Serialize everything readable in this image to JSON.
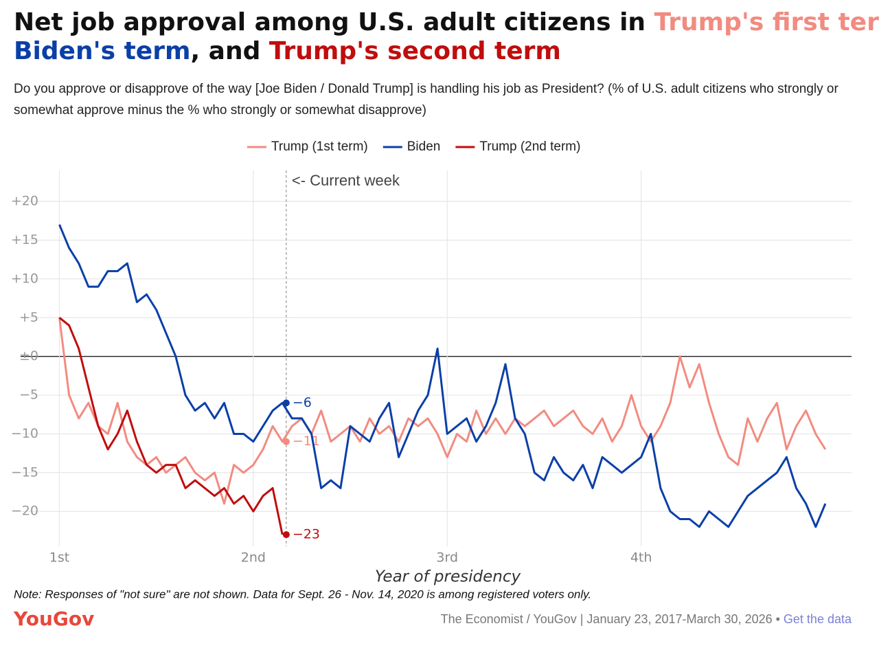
{
  "chart_data": {
    "type": "line",
    "title_parts": [
      "Net job approval among U.S. adult citizens in ",
      "Trump's first term",
      ",",
      "Biden's term",
      ", and ",
      "Trump's second term"
    ],
    "subtitle": "Do you approve or disapprove of the way [Joe Biden / Donald Trump] is handling his job as President? (% of U.S. adult citizens who strongly or somewhat approve minus the % who strongly or somewhat disapprove)",
    "x_label": "Year of presidency",
    "x": [
      1.0,
      1.05,
      1.1,
      1.15,
      1.2,
      1.25,
      1.3,
      1.35,
      1.4,
      1.45,
      1.5,
      1.55,
      1.6,
      1.65,
      1.7,
      1.75,
      1.8,
      1.85,
      1.9,
      1.95,
      2.0,
      2.05,
      2.1,
      2.15,
      2.2,
      2.25,
      2.3,
      2.35,
      2.4,
      2.45,
      2.5,
      2.55,
      2.6,
      2.65,
      2.7,
      2.75,
      2.8,
      2.85,
      2.9,
      2.95,
      3.0,
      3.05,
      3.1,
      3.15,
      3.2,
      3.25,
      3.3,
      3.35,
      3.4,
      3.45,
      3.5,
      3.55,
      3.6,
      3.65,
      3.7,
      3.75,
      3.8,
      3.85,
      3.9,
      3.95,
      4.0,
      4.05,
      4.1,
      4.15,
      4.2,
      4.25,
      4.3,
      4.35,
      4.4,
      4.45,
      4.5,
      4.55,
      4.6,
      4.65,
      4.7,
      4.75,
      4.8,
      4.85,
      4.9,
      4.95
    ],
    "series": [
      {
        "name": "Trump (1st term)",
        "color": "#f28b80",
        "values": [
          5,
          -5,
          -8,
          -6,
          -9,
          -10,
          -6,
          -11,
          -13,
          -14,
          -13,
          -15,
          -14,
          -13,
          -15,
          -16,
          -15,
          -19,
          -14,
          -15,
          -14,
          -12,
          -9,
          -11,
          -9,
          -8,
          -10,
          -7,
          -11,
          -10,
          -9,
          -11,
          -8,
          -10,
          -9,
          -11,
          -8,
          -9,
          -8,
          -10,
          -13,
          -10,
          -11,
          -7,
          -10,
          -8,
          -10,
          -8,
          -9,
          -8,
          -7,
          -9,
          -8,
          -7,
          -9,
          -10,
          -8,
          -11,
          -9,
          -5,
          -9,
          -11,
          -9,
          -6,
          0,
          -4,
          -1,
          -6,
          -10,
          -13,
          -14,
          -8,
          -11,
          -8,
          -6,
          -12,
          -9,
          -7,
          -10,
          -12
        ],
        "current": {
          "value": -11,
          "label": "−11"
        }
      },
      {
        "name": "Biden",
        "color": "#0b3fa8",
        "values": [
          17,
          14,
          12,
          9,
          9,
          11,
          11,
          12,
          7,
          8,
          6,
          3,
          0,
          -5,
          -7,
          -6,
          -8,
          -6,
          -10,
          -10,
          -11,
          -9,
          -7,
          -6,
          -8,
          -8,
          -10,
          -17,
          -16,
          -17,
          -9,
          -10,
          -11,
          -8,
          -6,
          -13,
          -10,
          -7,
          -5,
          1,
          -10,
          -9,
          -8,
          -11,
          -9,
          -6,
          -1,
          -8,
          -10,
          -15,
          -16,
          -13,
          -15,
          -16,
          -14,
          -17,
          -13,
          -14,
          -15,
          -14,
          -13,
          -10,
          -17,
          -20,
          -21,
          -21,
          -22,
          -20,
          -21,
          -22,
          -20,
          -18,
          -17,
          -16,
          -15,
          -13,
          -17,
          -19,
          -22,
          -19
        ],
        "current": {
          "value": -6,
          "label": "−6"
        }
      },
      {
        "name": "Trump (2nd term)",
        "color": "#c00d0d",
        "values": [
          5,
          4,
          1,
          -4,
          -9,
          -12,
          -10,
          -7,
          -11,
          -14,
          -15,
          -14,
          -14,
          -17,
          -16,
          -17,
          -18,
          -17,
          -19,
          -18,
          -20,
          -18,
          -17,
          -23,
          null,
          null,
          null,
          null,
          null,
          null,
          null,
          null,
          null,
          null,
          null,
          null,
          null,
          null,
          null,
          null,
          null,
          null,
          null,
          null,
          null,
          null,
          null,
          null,
          null,
          null,
          null,
          null,
          null,
          null,
          null,
          null,
          null,
          null,
          null,
          null,
          null,
          null,
          null,
          null,
          null,
          null,
          null,
          null,
          null,
          null,
          null,
          null,
          null,
          null,
          null,
          null,
          null,
          null,
          null,
          null
        ],
        "current": {
          "value": -23,
          "label": "−23"
        }
      }
    ],
    "current_week": {
      "x": 2.17,
      "label": "<- Current week"
    },
    "xlim": [
      0.8,
      5.085
    ],
    "xticks": [
      {
        "value": 1,
        "label": "1st"
      },
      {
        "value": 2,
        "label": "2nd"
      },
      {
        "value": 3,
        "label": "3rd"
      },
      {
        "value": 4,
        "label": "4th"
      }
    ],
    "ylim": [
      -24.5,
      24
    ],
    "yticks": [
      {
        "value": 20,
        "label": "+20"
      },
      {
        "value": 15,
        "label": "+15"
      },
      {
        "value": 10,
        "label": "+10"
      },
      {
        "value": 5,
        "label": "+5"
      },
      {
        "value": 0,
        "label": "±0"
      },
      {
        "value": -5,
        "label": "−5"
      },
      {
        "value": -10,
        "label": "−10"
      },
      {
        "value": -15,
        "label": "−15"
      },
      {
        "value": -20,
        "label": "−20"
      }
    ],
    "grid": true,
    "note": "Note: Responses of \"not sure\" are not shown. Data for Sept. 26 - Nov. 14, 2020 is among registered voters only.",
    "logo": "YouGov",
    "source": "The Economist / YouGov | January 23, 2017-March 30, 2026 • ",
    "data_link": "Get the data"
  }
}
